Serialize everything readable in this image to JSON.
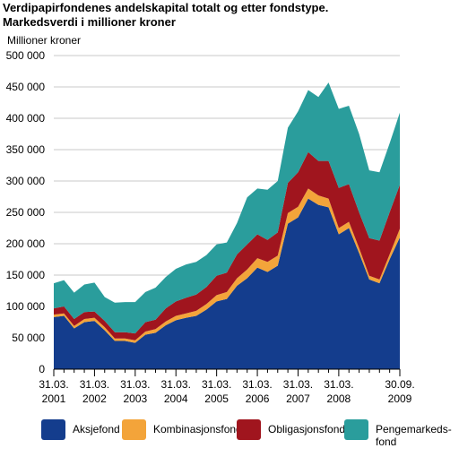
{
  "title": "Verdipapirfondenes andelskapital totalt og etter fondstype.",
  "subtitle": "Markedsverdi i millioner kroner",
  "chart_data": {
    "type": "area",
    "stacked": true,
    "ylabel": "Millioner kroner",
    "ylim": [
      0,
      500000
    ],
    "yticks": [
      0,
      50000,
      100000,
      150000,
      200000,
      250000,
      300000,
      350000,
      400000,
      450000,
      500000
    ],
    "ytick_labels": [
      "0",
      "50 000",
      "100 000",
      "150 000",
      "200 000",
      "250 000",
      "300 000",
      "350 000",
      "400 000",
      "450 000",
      "500 000"
    ],
    "grid": true,
    "x_labels": [
      {
        "line1": "31.03.",
        "line2": "2001",
        "index": 0
      },
      {
        "line1": "31.03.",
        "line2": "2002",
        "index": 4
      },
      {
        "line1": "31.03.",
        "line2": "2003",
        "index": 8
      },
      {
        "line1": "31.03.",
        "line2": "2004",
        "index": 12
      },
      {
        "line1": "31.03.",
        "line2": "2005",
        "index": 16
      },
      {
        "line1": "31.03.",
        "line2": "2006",
        "index": 20
      },
      {
        "line1": "31.03.",
        "line2": "2007",
        "index": 24
      },
      {
        "line1": "31.03.",
        "line2": "2008",
        "index": 28
      },
      {
        "line1": "30.09.",
        "line2": "2009",
        "index": 34
      }
    ],
    "series": [
      {
        "name": "Aksjefond",
        "color": "#143d8d",
        "values": [
          83000,
          85000,
          65000,
          75000,
          77000,
          62000,
          45000,
          45000,
          42000,
          55000,
          58000,
          70000,
          78000,
          82000,
          85000,
          95000,
          108000,
          112000,
          133000,
          145000,
          162000,
          155000,
          165000,
          232000,
          242000,
          272000,
          262000,
          258000,
          215000,
          225000,
          185000,
          143000,
          137000,
          175000,
          210000
        ]
      },
      {
        "name": "Kombinasjonsfond",
        "color": "#f3a43a",
        "values": [
          4000,
          4000,
          4000,
          5000,
          5000,
          5000,
          4000,
          4000,
          4000,
          5000,
          6000,
          6000,
          7000,
          7000,
          8000,
          9000,
          10000,
          11000,
          12000,
          14000,
          15000,
          16000,
          16000,
          17000,
          17000,
          16000,
          15000,
          14000,
          10000,
          10000,
          8000,
          6000,
          6000,
          8000,
          14000
        ]
      },
      {
        "name": "Obligasjonsfond",
        "color": "#a0151e",
        "values": [
          10000,
          11000,
          11000,
          11000,
          10000,
          10000,
          10000,
          10000,
          11000,
          15000,
          15000,
          21000,
          23000,
          25000,
          26000,
          27000,
          31000,
          31000,
          38000,
          40000,
          38000,
          35000,
          37000,
          48000,
          55000,
          58000,
          55000,
          60000,
          64000,
          60000,
          57000,
          60000,
          62000,
          67000,
          70000
        ]
      },
      {
        "name": "Pengemarkedsfond",
        "color": "#2a9d9c",
        "values": [
          40000,
          42000,
          42000,
          44000,
          46000,
          38000,
          47000,
          48000,
          50000,
          48000,
          51000,
          50000,
          52000,
          53000,
          52000,
          51000,
          50000,
          48000,
          50000,
          75000,
          73000,
          80000,
          82000,
          88000,
          97000,
          99000,
          102000,
          125000,
          126000,
          125000,
          125000,
          108000,
          109000,
          110000,
          115000
        ]
      }
    ],
    "legend": {
      "placement": "bottom",
      "items": [
        {
          "label": "Aksjefond",
          "color": "#143d8d"
        },
        {
          "label": "Kombinasjonsfond",
          "color": "#f3a43a"
        },
        {
          "label": "Obligasjonsfond",
          "color": "#a0151e"
        },
        {
          "label": "Pengemarkeds-\nfond",
          "color": "#2a9d9c"
        }
      ]
    }
  }
}
